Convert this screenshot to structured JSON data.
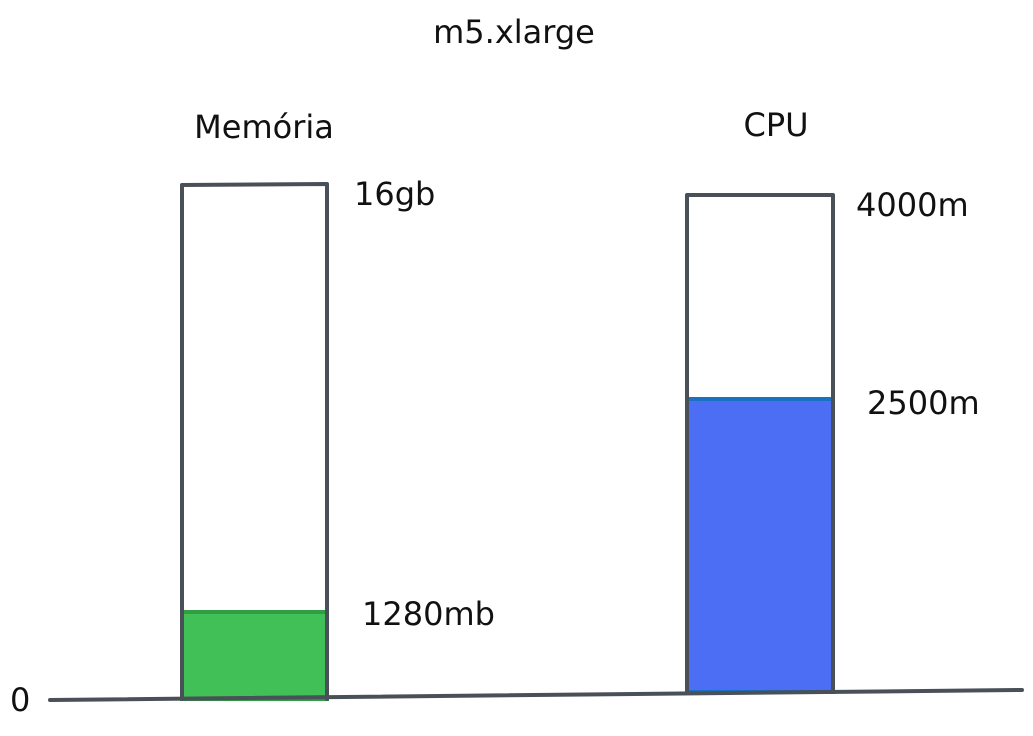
{
  "title": "m5.xlarge",
  "baseline_label": "0",
  "memory": {
    "label": "Memória",
    "capacity_label": "16gb",
    "used_label": "1280mb",
    "capacity_mb": 16384,
    "used_mb": 1280,
    "fill_color": "#40c057"
  },
  "cpu": {
    "label": "CPU",
    "capacity_label": "4000m",
    "used_label": "2500m",
    "capacity_millicores": 4000,
    "used_millicores": 2500,
    "fill_color": "#4c6ef5"
  },
  "colors": {
    "outline": "#495057",
    "text": "#111111",
    "memory_stroke": "#2f9e44",
    "cpu_stroke": "#1971c2"
  }
}
